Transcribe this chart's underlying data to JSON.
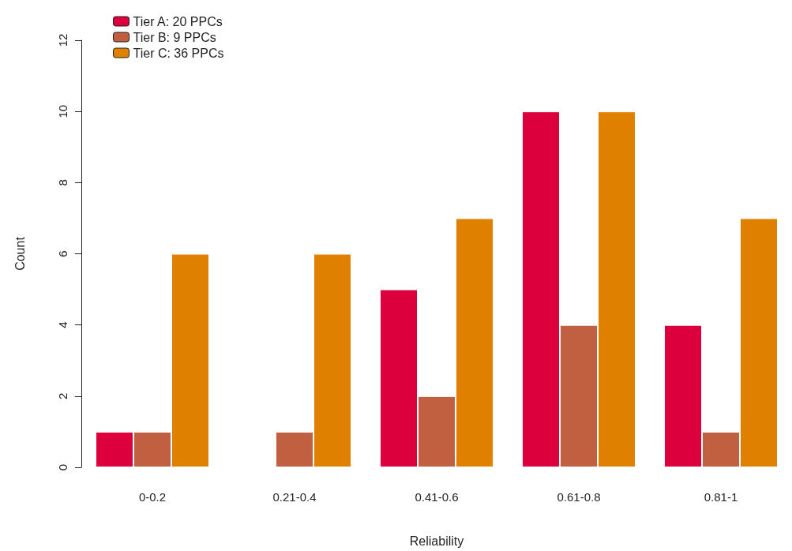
{
  "chart_data": {
    "type": "bar",
    "xlabel": "Reliability",
    "ylabel": "Count",
    "categories": [
      "0-0.2",
      "0.21-0.4",
      "0.41-0.6",
      "0.61-0.8",
      "0.81-1"
    ],
    "series": [
      {
        "name": "Tier A: 20 PPCs",
        "color": "#dc003c",
        "values": [
          1,
          0,
          5,
          10,
          4
        ]
      },
      {
        "name": "Tier B: 9 PPCs",
        "color": "#c06040",
        "values": [
          1,
          1,
          2,
          4,
          1
        ]
      },
      {
        "name": "Tier C: 36 PPCs",
        "color": "#e08000",
        "values": [
          6,
          6,
          7,
          10,
          7
        ]
      }
    ],
    "ylim": [
      0,
      12
    ],
    "yticks": [
      0,
      2,
      4,
      6,
      8,
      10,
      12
    ],
    "grid": false,
    "legend": "top left"
  }
}
